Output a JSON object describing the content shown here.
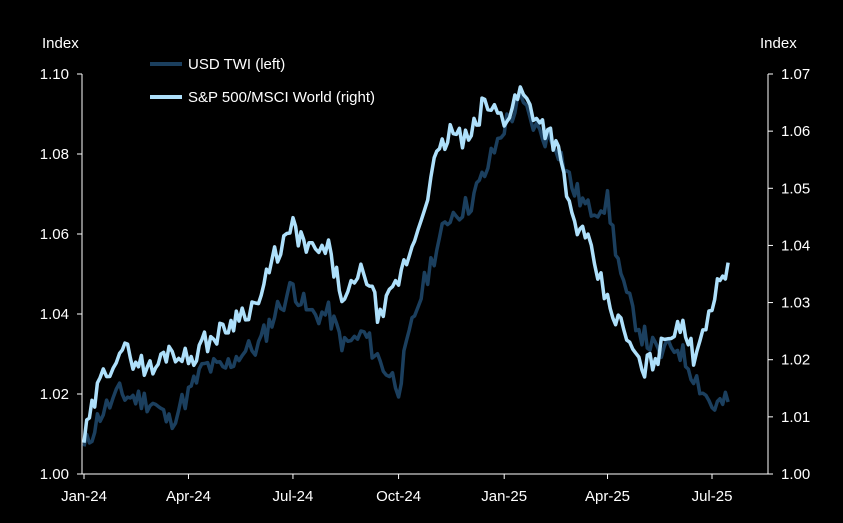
{
  "chart_data": {
    "type": "line",
    "title": "",
    "x_ticks": [
      "Jan-24",
      "Apr-24",
      "Jul-24",
      "Oct-24",
      "Jan-25",
      "Apr-25",
      "Jul-25"
    ],
    "left_axis": {
      "label": "Index",
      "ylim": [
        1.0,
        1.1
      ],
      "ticks": [
        "1.00",
        "1.02",
        "1.04",
        "1.06",
        "1.08",
        "1.10"
      ]
    },
    "right_axis": {
      "label": "Index",
      "ylim": [
        1.0,
        1.07
      ],
      "ticks": [
        "1.00",
        "1.01",
        "1.02",
        "1.03",
        "1.04",
        "1.05",
        "1.06",
        "1.07"
      ]
    },
    "legend": {
      "placement": "top-left"
    },
    "grid": false,
    "colors": {
      "usd_twi": "#1b3f5e",
      "sp500_msci": "#aee0fb",
      "background": "#000000",
      "axis": "#ffffff"
    },
    "series": [
      {
        "name": "USD TWI (left)",
        "axis": "left",
        "x": [
          "2024-01-01",
          "2024-01-15",
          "2024-02-01",
          "2024-02-15",
          "2024-03-01",
          "2024-03-15",
          "2024-04-01",
          "2024-04-15",
          "2024-05-01",
          "2024-05-15",
          "2024-06-01",
          "2024-06-15",
          "2024-07-01",
          "2024-07-15",
          "2024-08-01",
          "2024-08-15",
          "2024-09-01",
          "2024-09-15",
          "2024-10-01",
          "2024-10-15",
          "2024-11-01",
          "2024-11-15",
          "2024-12-01",
          "2024-12-15",
          "2025-01-01",
          "2025-01-15",
          "2025-02-01",
          "2025-02-15",
          "2025-03-01",
          "2025-03-15",
          "2025-04-01",
          "2025-04-15",
          "2025-05-01",
          "2025-05-15",
          "2025-06-01",
          "2025-06-15",
          "2025-07-01",
          "2025-07-15"
        ],
        "values": [
          1.006,
          1.015,
          1.02,
          1.019,
          1.018,
          1.013,
          1.02,
          1.027,
          1.026,
          1.03,
          1.032,
          1.04,
          1.047,
          1.04,
          1.04,
          1.032,
          1.035,
          1.028,
          1.022,
          1.04,
          1.055,
          1.065,
          1.067,
          1.075,
          1.087,
          1.093,
          1.085,
          1.083,
          1.072,
          1.066,
          1.068,
          1.046,
          1.035,
          1.03,
          1.032,
          1.025,
          1.017,
          1.018
        ]
      },
      {
        "name": "S&P 500/MSCI World (right)",
        "axis": "right",
        "x": [
          "2024-01-01",
          "2024-01-15",
          "2024-02-01",
          "2024-02-15",
          "2024-03-01",
          "2024-03-15",
          "2024-04-01",
          "2024-04-15",
          "2024-05-01",
          "2024-05-15",
          "2024-06-01",
          "2024-06-15",
          "2024-07-01",
          "2024-07-15",
          "2024-08-01",
          "2024-08-15",
          "2024-09-01",
          "2024-09-15",
          "2024-10-01",
          "2024-10-15",
          "2024-11-01",
          "2024-11-15",
          "2024-12-01",
          "2024-12-15",
          "2025-01-01",
          "2025-01-15",
          "2025-02-01",
          "2025-02-15",
          "2025-03-01",
          "2025-03-15",
          "2025-04-01",
          "2025-04-15",
          "2025-05-01",
          "2025-05-15",
          "2025-06-01",
          "2025-06-15",
          "2025-07-01",
          "2025-07-15"
        ],
        "values": [
          1.006,
          1.016,
          1.022,
          1.02,
          1.018,
          1.022,
          1.02,
          1.023,
          1.025,
          1.028,
          1.03,
          1.038,
          1.043,
          1.039,
          1.039,
          1.03,
          1.036,
          1.027,
          1.034,
          1.041,
          1.054,
          1.06,
          1.058,
          1.065,
          1.062,
          1.067,
          1.062,
          1.058,
          1.045,
          1.04,
          1.03,
          1.025,
          1.018,
          1.021,
          1.027,
          1.021,
          1.03,
          1.037
        ]
      }
    ]
  }
}
